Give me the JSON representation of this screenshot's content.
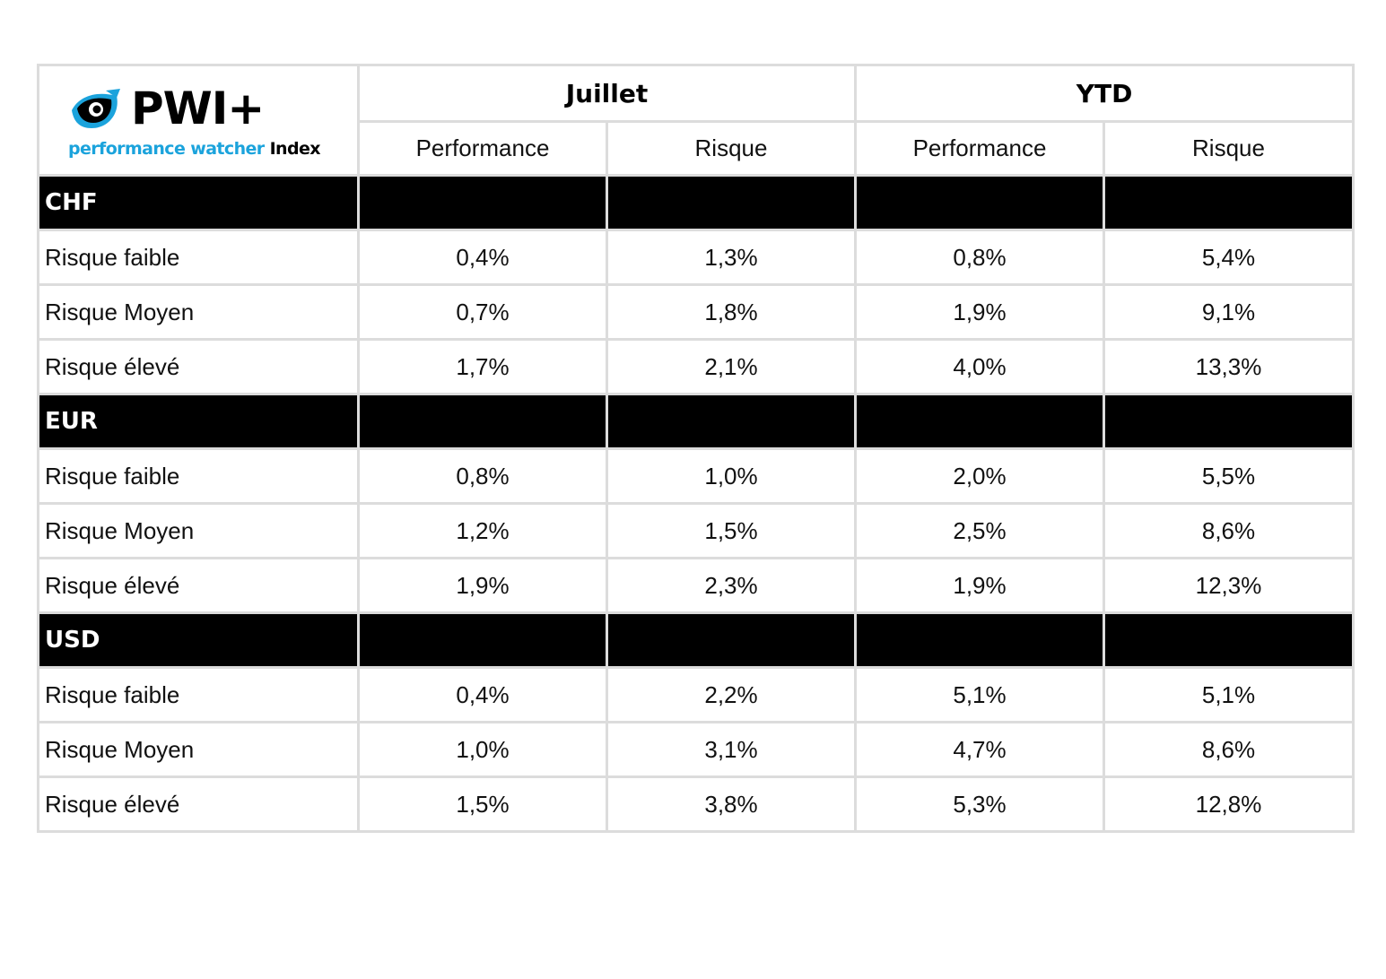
{
  "logo": {
    "mark": "PWI+",
    "subtitle_main": "performance watcher",
    "subtitle_suffix": "Index",
    "eye_icon_color": "#1ba3dc"
  },
  "header": {
    "groups": [
      "Juillet",
      "YTD"
    ],
    "subheaders": [
      "Performance",
      "Risque",
      "Performance",
      "Risque"
    ]
  },
  "sections": [
    {
      "currency": "CHF",
      "rows": [
        {
          "label": "Risque faible",
          "values": [
            "0,4%",
            "1,3%",
            "0,8%",
            "5,4%"
          ]
        },
        {
          "label": "Risque Moyen",
          "values": [
            "0,7%",
            "1,8%",
            "1,9%",
            "9,1%"
          ]
        },
        {
          "label": "Risque élevé",
          "values": [
            "1,7%",
            "2,1%",
            "4,0%",
            "13,3%"
          ]
        }
      ]
    },
    {
      "currency": "EUR",
      "rows": [
        {
          "label": "Risque faible",
          "values": [
            "0,8%",
            "1,0%",
            "2,0%",
            "5,5%"
          ]
        },
        {
          "label": "Risque Moyen",
          "values": [
            "1,2%",
            "1,5%",
            "2,5%",
            "8,6%"
          ]
        },
        {
          "label": "Risque élevé",
          "values": [
            "1,9%",
            "2,3%",
            "1,9%",
            "12,3%"
          ]
        }
      ]
    },
    {
      "currency": "USD",
      "rows": [
        {
          "label": "Risque faible",
          "values": [
            "0,4%",
            "2,2%",
            "5,1%",
            "5,1%"
          ]
        },
        {
          "label": "Risque Moyen",
          "values": [
            "1,0%",
            "3,1%",
            "4,7%",
            "8,6%"
          ]
        },
        {
          "label": "Risque élevé",
          "values": [
            "1,5%",
            "3,8%",
            "5,3%",
            "12,8%"
          ]
        }
      ]
    }
  ]
}
